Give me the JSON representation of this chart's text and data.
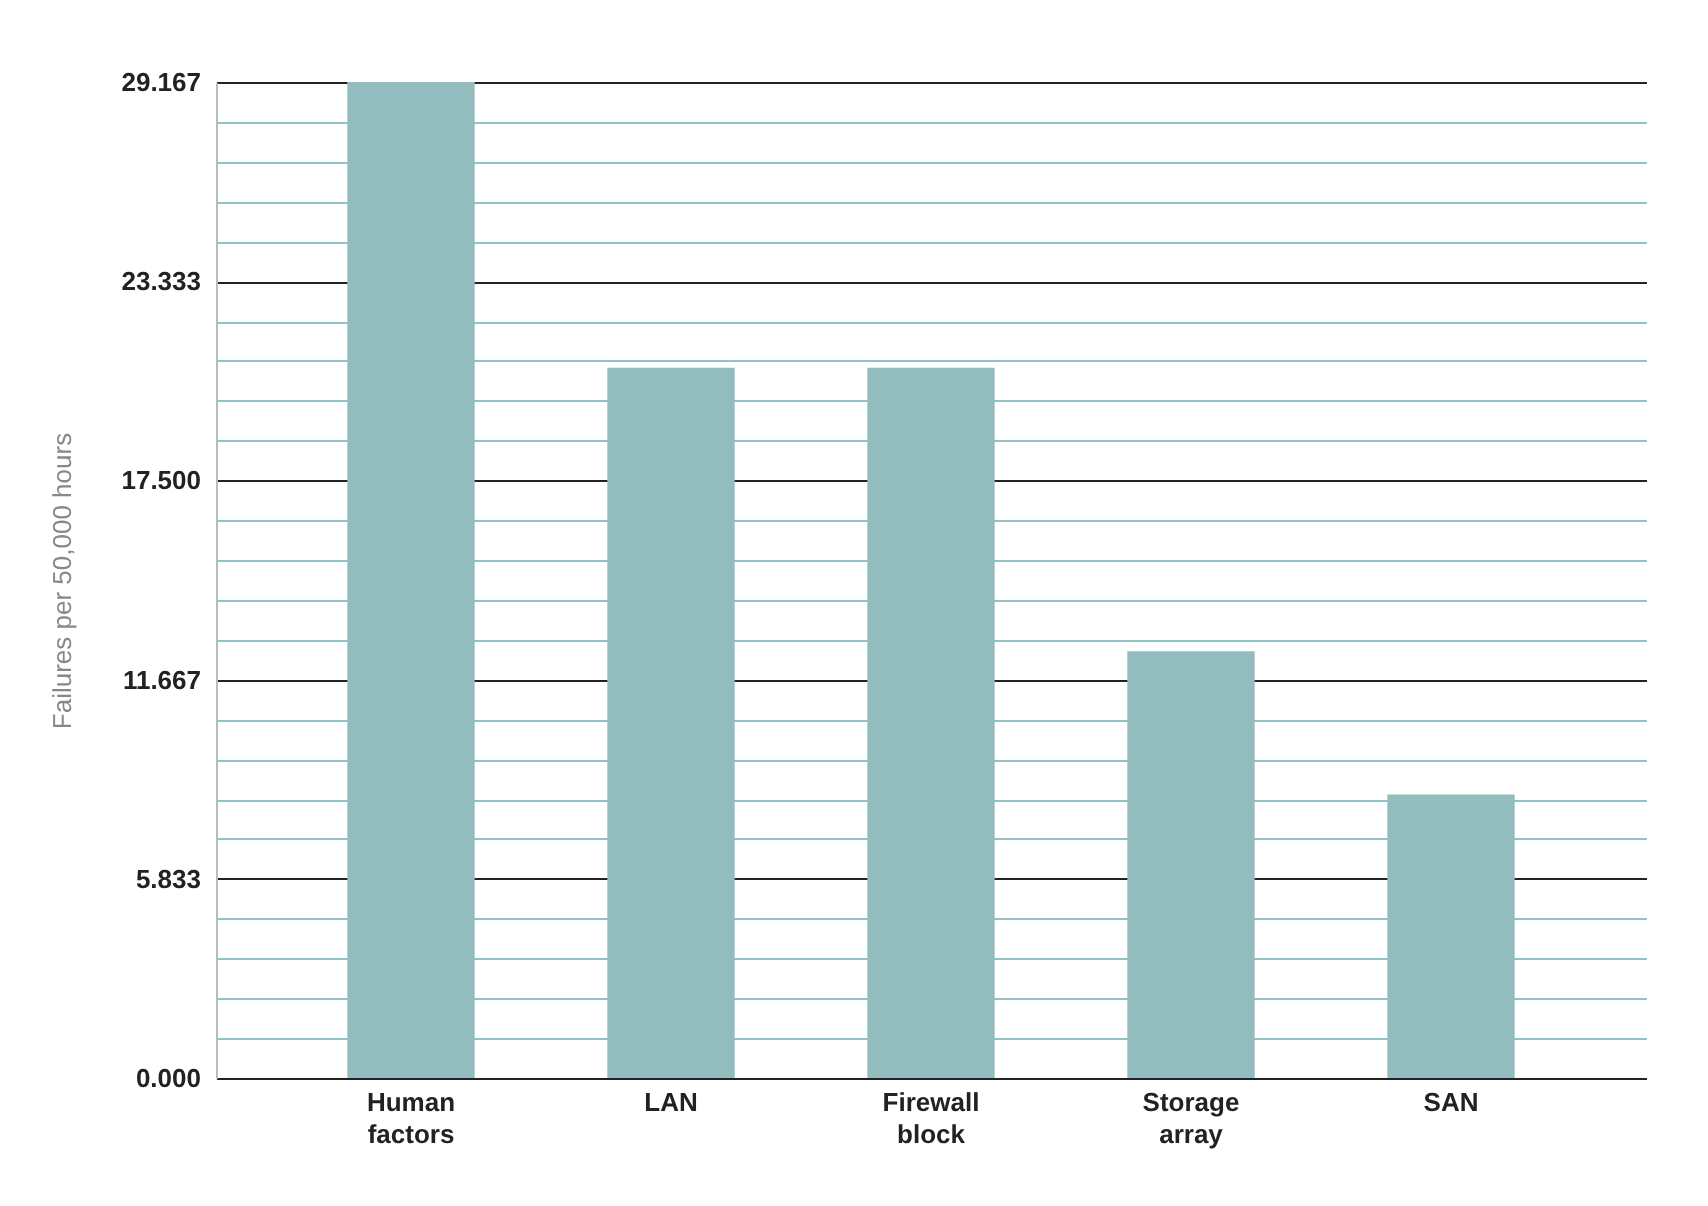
{
  "chart_data": {
    "type": "bar",
    "ylabel": "Failures per 50,000 hours",
    "categories": [
      "Human factors",
      "LAN",
      "Firewall block",
      "Storage array",
      "SAN"
    ],
    "values": [
      29.167,
      20.8,
      20.8,
      12.5,
      8.3
    ],
    "color": "#93bcbf",
    "ylim": [
      0,
      29.167
    ],
    "yticks": [
      {
        "value": 0,
        "label": "0.000"
      },
      {
        "value": 1.167,
        "label": null
      },
      {
        "value": 2.333,
        "label": null
      },
      {
        "value": 3.5,
        "label": null
      },
      {
        "value": 4.667,
        "label": null
      },
      {
        "value": 5.833,
        "label": "5.833"
      },
      {
        "value": 7,
        "label": null
      },
      {
        "value": 8.167,
        "label": null
      },
      {
        "value": 9.333,
        "label": null
      },
      {
        "value": 10.5,
        "label": null
      },
      {
        "value": 11.667,
        "label": "11.667"
      },
      {
        "value": 12.833,
        "label": null
      },
      {
        "value": 14,
        "label": null
      },
      {
        "value": 15.167,
        "label": null
      },
      {
        "value": 16.333,
        "label": null
      },
      {
        "value": 17.5,
        "label": "17.500"
      },
      {
        "value": 18.667,
        "label": null
      },
      {
        "value": 19.833,
        "label": null
      },
      {
        "value": 21,
        "label": null
      },
      {
        "value": 22.167,
        "label": null
      },
      {
        "value": 23.333,
        "label": "23.333"
      },
      {
        "value": 24.5,
        "label": null
      },
      {
        "value": 25.667,
        "label": null
      },
      {
        "value": 26.833,
        "label": null
      },
      {
        "value": 28,
        "label": null
      },
      29.167
    ],
    "grid": "y"
  }
}
